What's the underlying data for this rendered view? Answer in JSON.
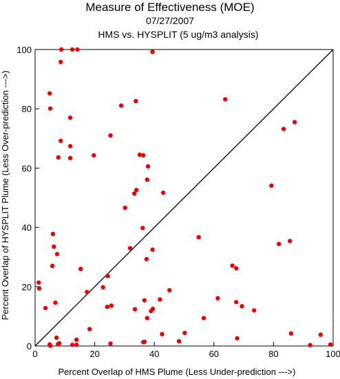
{
  "chart_data": {
    "type": "scatter",
    "title": "Measure of Effectiveness (MOE)",
    "date": "07/27/2007",
    "subtitle": "HMS vs. HYSPLIT  (5 ug/m3 analysis)",
    "xlabel": "Percent Overlap of HMS Plume (Less Under-prediction --->)",
    "ylabel": "Percent Overlap of HYSPLIT Plume (Less Over-prediction --->)",
    "xlim": [
      0,
      100
    ],
    "ylim": [
      0,
      100
    ],
    "x_ticks": [
      "0",
      "20",
      "40",
      "60",
      "80",
      "100"
    ],
    "y_ticks": [
      "0",
      "20",
      "40",
      "60",
      "80",
      "100"
    ],
    "reference_line": "y = x",
    "grid": false,
    "point_color": "#ee0000",
    "line_color": "#000000",
    "points": [
      {
        "x": 8.8,
        "y": 100
      },
      {
        "x": 12.5,
        "y": 100
      },
      {
        "x": 14.2,
        "y": 100
      },
      {
        "x": 39.4,
        "y": 99.2
      },
      {
        "x": 8.6,
        "y": 95.8
      },
      {
        "x": 4.9,
        "y": 85.2
      },
      {
        "x": 33.8,
        "y": 82.6
      },
      {
        "x": 28.9,
        "y": 81.1
      },
      {
        "x": 5.1,
        "y": 80.1
      },
      {
        "x": 63.8,
        "y": 83.2
      },
      {
        "x": 11.8,
        "y": 77.0
      },
      {
        "x": 87.1,
        "y": 75.5
      },
      {
        "x": 83.4,
        "y": 73.2
      },
      {
        "x": 25.3,
        "y": 71.0
      },
      {
        "x": 8.6,
        "y": 69.2
      },
      {
        "x": 11.8,
        "y": 67.4
      },
      {
        "x": 35.1,
        "y": 64.5
      },
      {
        "x": 36.3,
        "y": 64.3
      },
      {
        "x": 19.7,
        "y": 64.3
      },
      {
        "x": 7.8,
        "y": 63.6
      },
      {
        "x": 11.8,
        "y": 63.4
      },
      {
        "x": 37.9,
        "y": 60.6
      },
      {
        "x": 37.6,
        "y": 56.1
      },
      {
        "x": 79.3,
        "y": 54.1
      },
      {
        "x": 34.0,
        "y": 52.6
      },
      {
        "x": 33.3,
        "y": 51.4
      },
      {
        "x": 43.0,
        "y": 51.7
      },
      {
        "x": 30.2,
        "y": 46.6
      },
      {
        "x": 36.1,
        "y": 39.8
      },
      {
        "x": 6.0,
        "y": 37.8
      },
      {
        "x": 54.9,
        "y": 36.7
      },
      {
        "x": 85.5,
        "y": 35.4
      },
      {
        "x": 81.8,
        "y": 34.4
      },
      {
        "x": 6.3,
        "y": 33.5
      },
      {
        "x": 31.9,
        "y": 33.0
      },
      {
        "x": 39.4,
        "y": 32.5
      },
      {
        "x": 7.4,
        "y": 31.0
      },
      {
        "x": 37.4,
        "y": 29.3
      },
      {
        "x": 5.8,
        "y": 27.0
      },
      {
        "x": 66.2,
        "y": 27.1
      },
      {
        "x": 67.5,
        "y": 26.2
      },
      {
        "x": 15.3,
        "y": 26.0
      },
      {
        "x": 24.4,
        "y": 23.6
      },
      {
        "x": 1.2,
        "y": 21.4
      },
      {
        "x": 1.4,
        "y": 19.4
      },
      {
        "x": 22.8,
        "y": 19.8
      },
      {
        "x": 45.1,
        "y": 18.8
      },
      {
        "x": 17.4,
        "y": 18.2
      },
      {
        "x": 61.3,
        "y": 16.1
      },
      {
        "x": 41.9,
        "y": 15.7
      },
      {
        "x": 36.7,
        "y": 15.4
      },
      {
        "x": 6.8,
        "y": 14.6
      },
      {
        "x": 67.5,
        "y": 14.8
      },
      {
        "x": 69.4,
        "y": 13.4
      },
      {
        "x": 25.6,
        "y": 13.6
      },
      {
        "x": 24.2,
        "y": 13.2
      },
      {
        "x": 3.5,
        "y": 12.8
      },
      {
        "x": 33.5,
        "y": 12.4
      },
      {
        "x": 39.5,
        "y": 12.5
      },
      {
        "x": 38.9,
        "y": 11.8
      },
      {
        "x": 73.5,
        "y": 12.0
      },
      {
        "x": 37.6,
        "y": 9.4
      },
      {
        "x": 56.6,
        "y": 9.4
      },
      {
        "x": 18.3,
        "y": 5.7
      },
      {
        "x": 50.2,
        "y": 4.4
      },
      {
        "x": 42.6,
        "y": 4.0
      },
      {
        "x": 85.9,
        "y": 4.2
      },
      {
        "x": 95.8,
        "y": 3.8
      },
      {
        "x": 7.2,
        "y": 2.8
      },
      {
        "x": 67.8,
        "y": 2.6
      },
      {
        "x": 13.9,
        "y": 2.1
      },
      {
        "x": 48.3,
        "y": 1.6
      },
      {
        "x": 36.7,
        "y": 1.4
      },
      {
        "x": 36.3,
        "y": 1.3
      },
      {
        "x": 8.1,
        "y": 0.9
      },
      {
        "x": 7.7,
        "y": 0.6
      },
      {
        "x": 4.9,
        "y": 0.5
      },
      {
        "x": 13.9,
        "y": 0.4
      },
      {
        "x": 12.5,
        "y": 0.4
      },
      {
        "x": 25.3,
        "y": 0.8
      },
      {
        "x": 5.1,
        "y": 0.1
      },
      {
        "x": 92.3,
        "y": 0.3
      },
      {
        "x": 99.1,
        "y": 0.5
      }
    ]
  }
}
